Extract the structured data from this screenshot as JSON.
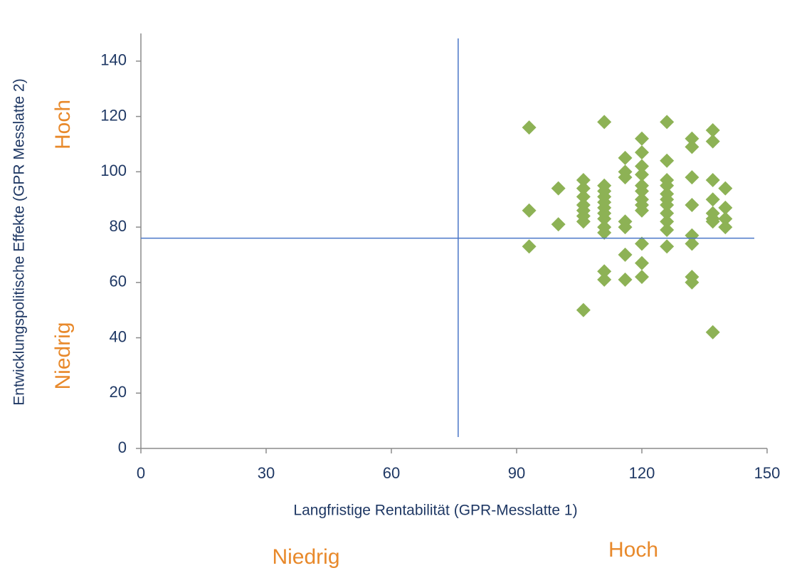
{
  "chart_data": {
    "type": "scatter",
    "x_label": "Langfristige Rentabilität (GPR-Messlatte 1)",
    "y_label": "Entwicklungspolitische Effekte (GPR Messlatte 2)",
    "annotations": {
      "y_high": "Hoch",
      "y_low": "Niedrig",
      "x_low": "Niedrig",
      "x_high": "Hoch"
    },
    "xlim": [
      0,
      150
    ],
    "xticks": [
      0,
      30,
      60,
      90,
      120,
      150
    ],
    "ylim": [
      0,
      150
    ],
    "yticks": [
      0,
      20,
      40,
      60,
      80,
      100,
      120,
      140
    ],
    "reference_lines": {
      "x": 76,
      "y": 76,
      "color": "#4a76c8"
    },
    "series": [
      {
        "color": "#8db255",
        "x": [
          93,
          93,
          93,
          100,
          100,
          106,
          106,
          106,
          106,
          106,
          106,
          106,
          106,
          111,
          111,
          111,
          111,
          111,
          111,
          111,
          111,
          111,
          111,
          111,
          111,
          116,
          116,
          116,
          116,
          116,
          116,
          116,
          120,
          120,
          120,
          120,
          120,
          120,
          120,
          120,
          120,
          120,
          120,
          120,
          126,
          126,
          126,
          126,
          126,
          126,
          126,
          126,
          126,
          126,
          126,
          132,
          132,
          132,
          132,
          132,
          132,
          132,
          132,
          137,
          137,
          137,
          137,
          137,
          137,
          137,
          137,
          140,
          140,
          140,
          140
        ],
        "y": [
          116,
          86,
          73,
          94,
          81,
          97,
          94,
          91,
          88,
          86,
          84,
          82,
          50,
          118,
          95,
          93,
          91,
          89,
          87,
          85,
          83,
          80,
          78,
          64,
          61,
          105,
          100,
          98,
          82,
          80,
          70,
          61,
          112,
          107,
          102,
          99,
          95,
          93,
          90,
          88,
          86,
          74,
          67,
          62,
          118,
          104,
          97,
          95,
          92,
          90,
          88,
          85,
          82,
          79,
          73,
          112,
          109,
          98,
          88,
          77,
          74,
          62,
          60,
          115,
          111,
          97,
          90,
          85,
          83,
          82,
          42,
          94,
          87,
          83,
          80
        ]
      }
    ]
  }
}
